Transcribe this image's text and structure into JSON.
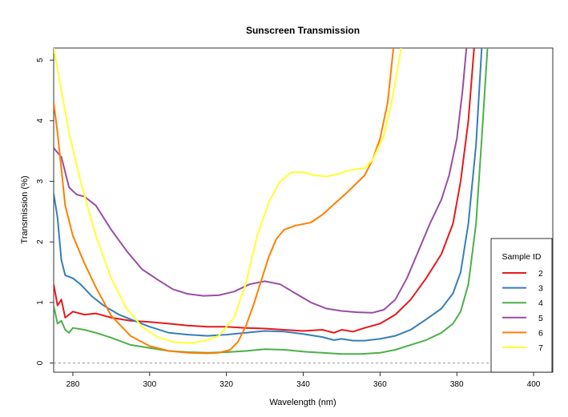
{
  "chart_data": {
    "type": "line",
    "title": "Sunscreen Transmission",
    "xlabel": "Wavelength (nm)",
    "ylabel": "Transmission (%)",
    "xlim": [
      275,
      405
    ],
    "ylim": [
      -0.15,
      5.2
    ],
    "xticks": [
      280,
      300,
      320,
      340,
      360,
      380,
      400
    ],
    "yticks": [
      0,
      1,
      2,
      3,
      4,
      5
    ],
    "reference_line": {
      "y": 0,
      "style": "dashed"
    },
    "legend": {
      "title": "Sample ID",
      "position": "bottom-right"
    },
    "series": [
      {
        "name": "2",
        "color": "#E41A1C",
        "points": [
          [
            275,
            1.3
          ],
          [
            276,
            0.95
          ],
          [
            277,
            1.05
          ],
          [
            278,
            0.75
          ],
          [
            280,
            0.85
          ],
          [
            283,
            0.8
          ],
          [
            286,
            0.82
          ],
          [
            290,
            0.75
          ],
          [
            295,
            0.7
          ],
          [
            300,
            0.68
          ],
          [
            305,
            0.65
          ],
          [
            310,
            0.62
          ],
          [
            315,
            0.6
          ],
          [
            320,
            0.6
          ],
          [
            325,
            0.58
          ],
          [
            330,
            0.57
          ],
          [
            335,
            0.55
          ],
          [
            340,
            0.53
          ],
          [
            345,
            0.55
          ],
          [
            348,
            0.5
          ],
          [
            350,
            0.55
          ],
          [
            353,
            0.52
          ],
          [
            356,
            0.58
          ],
          [
            360,
            0.65
          ],
          [
            364,
            0.8
          ],
          [
            368,
            1.05
          ],
          [
            372,
            1.4
          ],
          [
            376,
            1.8
          ],
          [
            379,
            2.3
          ],
          [
            381,
            3.0
          ],
          [
            383,
            4.0
          ],
          [
            384.5,
            5.2
          ]
        ]
      },
      {
        "name": "3",
        "color": "#377EB8",
        "points": [
          [
            275,
            2.8
          ],
          [
            276,
            2.4
          ],
          [
            277,
            1.7
          ],
          [
            278,
            1.45
          ],
          [
            280,
            1.4
          ],
          [
            282,
            1.3
          ],
          [
            285,
            1.1
          ],
          [
            288,
            0.95
          ],
          [
            292,
            0.8
          ],
          [
            296,
            0.7
          ],
          [
            300,
            0.6
          ],
          [
            305,
            0.5
          ],
          [
            310,
            0.47
          ],
          [
            315,
            0.45
          ],
          [
            320,
            0.47
          ],
          [
            325,
            0.5
          ],
          [
            330,
            0.53
          ],
          [
            335,
            0.52
          ],
          [
            340,
            0.48
          ],
          [
            345,
            0.43
          ],
          [
            348,
            0.38
          ],
          [
            350,
            0.4
          ],
          [
            353,
            0.37
          ],
          [
            356,
            0.37
          ],
          [
            360,
            0.4
          ],
          [
            364,
            0.45
          ],
          [
            368,
            0.55
          ],
          [
            372,
            0.72
          ],
          [
            376,
            0.9
          ],
          [
            379,
            1.15
          ],
          [
            381,
            1.5
          ],
          [
            383,
            2.3
          ],
          [
            385,
            3.6
          ],
          [
            386.5,
            5.2
          ]
        ]
      },
      {
        "name": "4",
        "color": "#4DAF4A",
        "points": [
          [
            275,
            0.95
          ],
          [
            276,
            0.65
          ],
          [
            277,
            0.7
          ],
          [
            278,
            0.55
          ],
          [
            279,
            0.5
          ],
          [
            280,
            0.58
          ],
          [
            283,
            0.55
          ],
          [
            286,
            0.5
          ],
          [
            290,
            0.42
          ],
          [
            295,
            0.3
          ],
          [
            300,
            0.25
          ],
          [
            305,
            0.2
          ],
          [
            310,
            0.18
          ],
          [
            315,
            0.17
          ],
          [
            320,
            0.18
          ],
          [
            325,
            0.2
          ],
          [
            330,
            0.23
          ],
          [
            335,
            0.22
          ],
          [
            340,
            0.19
          ],
          [
            345,
            0.17
          ],
          [
            350,
            0.15
          ],
          [
            355,
            0.15
          ],
          [
            360,
            0.17
          ],
          [
            364,
            0.22
          ],
          [
            368,
            0.3
          ],
          [
            372,
            0.38
          ],
          [
            376,
            0.5
          ],
          [
            379,
            0.65
          ],
          [
            381,
            0.85
          ],
          [
            383,
            1.3
          ],
          [
            385,
            2.3
          ],
          [
            386.5,
            3.7
          ],
          [
            388,
            5.2
          ]
        ]
      },
      {
        "name": "5",
        "color": "#984EA3",
        "points": [
          [
            275,
            3.55
          ],
          [
            277,
            3.4
          ],
          [
            279,
            2.9
          ],
          [
            281,
            2.78
          ],
          [
            283,
            2.75
          ],
          [
            286,
            2.6
          ],
          [
            290,
            2.2
          ],
          [
            294,
            1.85
          ],
          [
            298,
            1.55
          ],
          [
            302,
            1.38
          ],
          [
            306,
            1.22
          ],
          [
            310,
            1.14
          ],
          [
            314,
            1.11
          ],
          [
            318,
            1.12
          ],
          [
            322,
            1.18
          ],
          [
            326,
            1.3
          ],
          [
            330,
            1.35
          ],
          [
            334,
            1.3
          ],
          [
            338,
            1.15
          ],
          [
            342,
            1.0
          ],
          [
            346,
            0.9
          ],
          [
            350,
            0.86
          ],
          [
            354,
            0.84
          ],
          [
            358,
            0.83
          ],
          [
            361,
            0.88
          ],
          [
            364,
            1.05
          ],
          [
            367,
            1.4
          ],
          [
            370,
            1.85
          ],
          [
            373,
            2.3
          ],
          [
            376,
            2.7
          ],
          [
            378,
            3.1
          ],
          [
            380,
            3.7
          ],
          [
            381.5,
            4.5
          ],
          [
            382.5,
            5.2
          ]
        ]
      },
      {
        "name": "6",
        "color": "#FF7F00",
        "points": [
          [
            275,
            4.3
          ],
          [
            276,
            3.8
          ],
          [
            277,
            3.2
          ],
          [
            278,
            2.6
          ],
          [
            280,
            2.1
          ],
          [
            283,
            1.65
          ],
          [
            286,
            1.25
          ],
          [
            290,
            0.78
          ],
          [
            295,
            0.45
          ],
          [
            300,
            0.28
          ],
          [
            305,
            0.2
          ],
          [
            310,
            0.17
          ],
          [
            315,
            0.16
          ],
          [
            318,
            0.17
          ],
          [
            321,
            0.22
          ],
          [
            323,
            0.35
          ],
          [
            325,
            0.6
          ],
          [
            327,
            0.95
          ],
          [
            329,
            1.35
          ],
          [
            331,
            1.75
          ],
          [
            333,
            2.05
          ],
          [
            335,
            2.2
          ],
          [
            338,
            2.27
          ],
          [
            342,
            2.32
          ],
          [
            345,
            2.45
          ],
          [
            348,
            2.62
          ],
          [
            352,
            2.85
          ],
          [
            356,
            3.1
          ],
          [
            358,
            3.35
          ],
          [
            360,
            3.7
          ],
          [
            362,
            4.3
          ],
          [
            363.5,
            5.2
          ]
        ]
      },
      {
        "name": "7",
        "color": "#FFFF33",
        "points": [
          [
            275,
            5.2
          ],
          [
            277,
            4.5
          ],
          [
            279,
            3.8
          ],
          [
            282,
            3.0
          ],
          [
            286,
            2.1
          ],
          [
            290,
            1.4
          ],
          [
            294,
            0.9
          ],
          [
            298,
            0.6
          ],
          [
            302,
            0.43
          ],
          [
            306,
            0.35
          ],
          [
            310,
            0.33
          ],
          [
            314,
            0.36
          ],
          [
            318,
            0.45
          ],
          [
            322,
            0.75
          ],
          [
            325,
            1.3
          ],
          [
            328,
            2.1
          ],
          [
            331,
            2.65
          ],
          [
            334,
            3.0
          ],
          [
            337,
            3.15
          ],
          [
            340,
            3.15
          ],
          [
            343,
            3.1
          ],
          [
            346,
            3.08
          ],
          [
            349,
            3.12
          ],
          [
            352,
            3.18
          ],
          [
            356,
            3.22
          ],
          [
            358,
            3.35
          ],
          [
            361,
            3.75
          ],
          [
            363,
            4.3
          ],
          [
            365,
            5.0
          ],
          [
            365.5,
            5.2
          ]
        ]
      }
    ]
  }
}
